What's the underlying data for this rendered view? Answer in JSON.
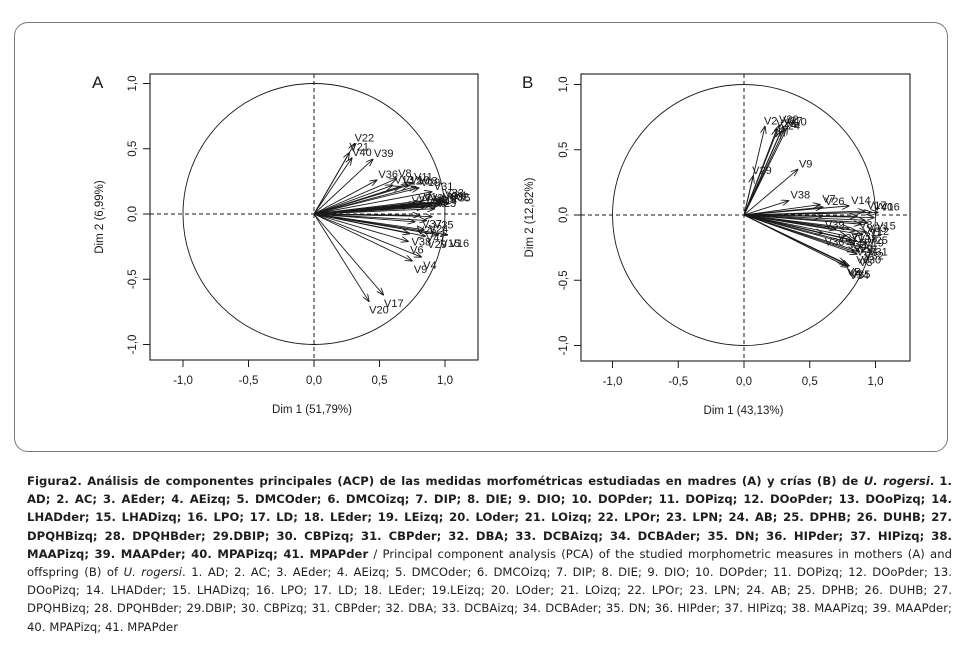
{
  "chart_data": [
    {
      "type": "scatter",
      "subtype": "pca-correlation-circle",
      "panel_label": "A",
      "xlabel": "Dim 1 (51,79%)",
      "ylabel": "Dim 2 (6,99%)",
      "xlim": [
        -1.25,
        1.25
      ],
      "ylim": [
        -1.05,
        1.05
      ],
      "xticks": [
        "-1,0",
        "-0,5",
        "0,0",
        "0,5",
        "1,0"
      ],
      "yticks": [
        "-1,0",
        "-0,5",
        "0,0",
        "0,5",
        "1,0"
      ],
      "tick_values": [
        -1,
        -0.5,
        0,
        0.5,
        1
      ],
      "grid": false,
      "vectors": [
        {
          "name": "V22",
          "x": 0.31,
          "y": 0.54
        },
        {
          "name": "V21",
          "x": 0.27,
          "y": 0.47
        },
        {
          "name": "V40",
          "x": 0.29,
          "y": 0.43
        },
        {
          "name": "V39",
          "x": 0.45,
          "y": 0.42
        },
        {
          "name": "V36",
          "x": 0.48,
          "y": 0.26
        },
        {
          "name": "V8",
          "x": 0.63,
          "y": 0.27
        },
        {
          "name": "V13",
          "x": 0.6,
          "y": 0.22
        },
        {
          "name": "V12",
          "x": 0.66,
          "y": 0.21
        },
        {
          "name": "V10",
          "x": 0.72,
          "y": 0.22
        },
        {
          "name": "V11",
          "x": 0.75,
          "y": 0.24
        },
        {
          "name": "V18",
          "x": 0.78,
          "y": 0.21
        },
        {
          "name": "V19",
          "x": 0.8,
          "y": 0.2
        },
        {
          "name": "V31",
          "x": 0.9,
          "y": 0.17
        },
        {
          "name": "V33",
          "x": 0.98,
          "y": 0.12
        },
        {
          "name": "V34",
          "x": 1.0,
          "y": 0.1
        },
        {
          "name": "V32",
          "x": 1.02,
          "y": 0.09
        },
        {
          "name": "V35",
          "x": 1.03,
          "y": 0.08
        },
        {
          "name": "V30",
          "x": 0.97,
          "y": 0.09
        },
        {
          "name": "V5",
          "x": 0.96,
          "y": 0.07
        },
        {
          "name": "V1",
          "x": 0.82,
          "y": 0.09
        },
        {
          "name": "V3",
          "x": 0.87,
          "y": 0.08
        },
        {
          "name": "V2",
          "x": 0.9,
          "y": 0.07
        },
        {
          "name": "V7",
          "x": 0.78,
          "y": 0.08
        },
        {
          "name": "V28",
          "x": 0.84,
          "y": 0.05
        },
        {
          "name": "V23",
          "x": 0.92,
          "y": 0.04
        },
        {
          "name": "V27",
          "x": 0.73,
          "y": 0.06
        },
        {
          "name": "V14",
          "x": 0.93,
          "y": 0.06
        },
        {
          "name": "V37",
          "x": 0.81,
          "y": -0.01
        },
        {
          "name": "V25",
          "x": 0.9,
          "y": -0.02
        },
        {
          "name": "V24",
          "x": 0.86,
          "y": -0.05
        },
        {
          "name": "V26",
          "x": 0.77,
          "y": -0.06
        },
        {
          "name": "V41",
          "x": 0.84,
          "y": -0.12
        },
        {
          "name": "V38",
          "x": 0.73,
          "y": -0.15
        },
        {
          "name": "V29",
          "x": 0.85,
          "y": -0.17
        },
        {
          "name": "V15",
          "x": 0.95,
          "y": -0.16
        },
        {
          "name": "V16",
          "x": 1.02,
          "y": -0.16
        },
        {
          "name": "V6",
          "x": 0.72,
          "y": -0.21
        },
        {
          "name": "V9",
          "x": 0.75,
          "y": -0.36
        },
        {
          "name": "V4",
          "x": 0.82,
          "y": -0.33
        },
        {
          "name": "V20",
          "x": 0.42,
          "y": -0.67
        },
        {
          "name": "V17",
          "x": 0.53,
          "y": -0.62
        }
      ]
    },
    {
      "type": "scatter",
      "subtype": "pca-correlation-circle",
      "panel_label": "B",
      "xlabel": "Dim 1 (43,13%)",
      "ylabel": "Dim 2 (12,82%)",
      "xlim": [
        -1.25,
        1.25
      ],
      "ylim": [
        -1.05,
        1.05
      ],
      "xticks": [
        "-1,0",
        "-0,5",
        "0,0",
        "0,5",
        "1,0"
      ],
      "yticks": [
        "-1,0",
        "-0,5",
        "0,0",
        "0,5",
        "1,0"
      ],
      "tick_values": [
        -1,
        -0.5,
        0,
        0.5,
        1
      ],
      "grid": false,
      "vectors": [
        {
          "name": "V2",
          "x": 0.16,
          "y": 0.68
        },
        {
          "name": "V23",
          "x": 0.25,
          "y": 0.66
        },
        {
          "name": "V22",
          "x": 0.27,
          "y": 0.69
        },
        {
          "name": "V27",
          "x": 0.3,
          "y": 0.68
        },
        {
          "name": "V24",
          "x": 0.28,
          "y": 0.64
        },
        {
          "name": "V1",
          "x": 0.31,
          "y": 0.66
        },
        {
          "name": "V10",
          "x": 0.33,
          "y": 0.67
        },
        {
          "name": "V29",
          "x": 0.07,
          "y": 0.3
        },
        {
          "name": "V9",
          "x": 0.41,
          "y": 0.35
        },
        {
          "name": "V38",
          "x": 0.34,
          "y": 0.11
        },
        {
          "name": "V7",
          "x": 0.58,
          "y": 0.08
        },
        {
          "name": "V26",
          "x": 0.6,
          "y": 0.06
        },
        {
          "name": "V14",
          "x": 0.8,
          "y": 0.07
        },
        {
          "name": "V17",
          "x": 0.92,
          "y": 0.03
        },
        {
          "name": "V40",
          "x": 0.97,
          "y": 0.02
        },
        {
          "name": "V16",
          "x": 1.02,
          "y": 0.02
        },
        {
          "name": "V15",
          "x": 0.99,
          "y": -0.02
        },
        {
          "name": "V39",
          "x": 0.6,
          "y": -0.01
        },
        {
          "name": "V8",
          "x": 0.86,
          "y": -0.01
        },
        {
          "name": "V33",
          "x": 0.92,
          "y": -0.04
        },
        {
          "name": "V11",
          "x": 0.89,
          "y": -0.07
        },
        {
          "name": "V12",
          "x": 0.94,
          "y": -0.06
        },
        {
          "name": "V13",
          "x": 0.8,
          "y": -0.1
        },
        {
          "name": "V37",
          "x": 0.7,
          "y": -0.11
        },
        {
          "name": "V36",
          "x": 0.6,
          "y": -0.14
        },
        {
          "name": "V18",
          "x": 0.85,
          "y": -0.12
        },
        {
          "name": "V19",
          "x": 0.9,
          "y": -0.15
        },
        {
          "name": "V41",
          "x": 0.78,
          "y": -0.16
        },
        {
          "name": "V25",
          "x": 0.93,
          "y": -0.13
        },
        {
          "name": "V20",
          "x": 0.82,
          "y": -0.19
        },
        {
          "name": "V21",
          "x": 0.86,
          "y": -0.2
        },
        {
          "name": "V28",
          "x": 0.84,
          "y": -0.22
        },
        {
          "name": "V31",
          "x": 0.93,
          "y": -0.22
        },
        {
          "name": "V32",
          "x": 0.9,
          "y": -0.25
        },
        {
          "name": "V30",
          "x": 0.88,
          "y": -0.28
        },
        {
          "name": "V6",
          "x": 0.84,
          "y": -0.28
        },
        {
          "name": "V3",
          "x": 0.86,
          "y": -0.3
        },
        {
          "name": "V35",
          "x": 0.8,
          "y": -0.39
        },
        {
          "name": "V34",
          "x": 0.79,
          "y": -0.4
        },
        {
          "name": "V4",
          "x": 0.78,
          "y": -0.38
        },
        {
          "name": "V5",
          "x": 0.77,
          "y": -0.37
        }
      ]
    }
  ],
  "caption": {
    "es_title_bold": "Figura2. Análisis de componentes principales (ACP) de las medidas morfométricas estudiadas en madres (A) y crías (B) de ",
    "es_species": "U. rogersi",
    "es_period": ".",
    "es_list_bold": "1. AD; 2. AC; 3. AEder; 4. AEizq; 5. DMCOder; 6. DMCOizq; 7. DIP; 8. DIE; 9. DIO; 10. DOPder; 11. DOPizq; 12. DOoPder; 13. DOoPizq; 14. LHADder; 15. LHADizq; 16. LPO; 17. LD; 18. LEder; 19. LEizq; 20. LOder; 21. LOizq; 22. LPOr; 23. LPN; 24. AB; 25. DPHB; 26. DUHB; 27. DPQHBizq; 28. DPQHBder; 29.DBIP; 30. CBPizq; 31. CBPder; 32. DBA; 33. DCBAizq; 34. DCBAder; 35. DN; 36. HIPder; 37. HIPizq; 38. MAAPizq; 39. MAAPder; 40. MPAPizq; 41. MPAPder",
    "en_intro": " / Principal component analysis (PCA) of the studied morphometric measures in mothers (A) and offspring (B) of ",
    "en_species": "U. rogersi",
    "en_list": ". 1. AD; 2. AC; 3. AEder; 4. AEizq; 5. DMCOder; 6. DMCOizq; 7. DIP; 8. DIE; 9. DIO; 10. DOPder; 11. DOPizq; 12. DOoPder; 13. DOoPizq; 14. LHADder; 15. LHADizq; 16. LPO; 17. LD; 18. LEder; 19.LEizq; 20. LOder; 21. LOizq; 22. LPOr; 23. LPN; 24. AB; 25. DPHB; 26. DUHB; 27. DPQHBizq; 28. DPQHBder; 29.DBIP; 30. CBPizq; 31. CBPder; 32. DBA; 33. DCBAizq; 34. DCBAder; 35. DN; 36. HIPder; 37. HIPizq; 38. MAAPizq; 39. MAAPder; 40. MPAPizq; 41. MPAPder"
  },
  "colors": {
    "ink": "#1a1a1a",
    "frame": "#7a7a7a",
    "caption": "#1e1e1e"
  }
}
